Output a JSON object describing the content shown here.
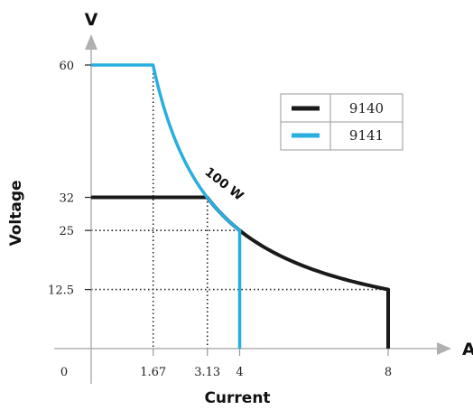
{
  "chart_data": {
    "type": "line",
    "y_unit": "V",
    "x_unit": "A",
    "ylabel": "Voltage",
    "xlabel": "Current",
    "origin_label": "0",
    "x_ticks": [
      {
        "value": 1.67,
        "label": "1.67"
      },
      {
        "value": 3.13,
        "label": "3.13"
      },
      {
        "value": 4,
        "label": "4"
      },
      {
        "value": 8,
        "label": "8"
      }
    ],
    "y_ticks": [
      {
        "value": 12.5,
        "label": "12.5"
      },
      {
        "value": 25,
        "label": "25"
      },
      {
        "value": 32,
        "label": "32"
      },
      {
        "value": 60,
        "label": "60"
      }
    ],
    "xlim": [
      0,
      8.7
    ],
    "ylim": [
      0,
      67
    ],
    "power_watts": 100,
    "annotation": "100 W",
    "legend": {
      "placement": "top-right"
    },
    "series": [
      {
        "name": "9140",
        "color": "#1a1a1a",
        "current_limit": 8,
        "voltage_limit": 32,
        "min_voltage": 12.5
      },
      {
        "name": "9141",
        "color": "#29aee0",
        "current_limit": 4,
        "voltage_limit": 60,
        "min_voltage": 25
      }
    ]
  }
}
